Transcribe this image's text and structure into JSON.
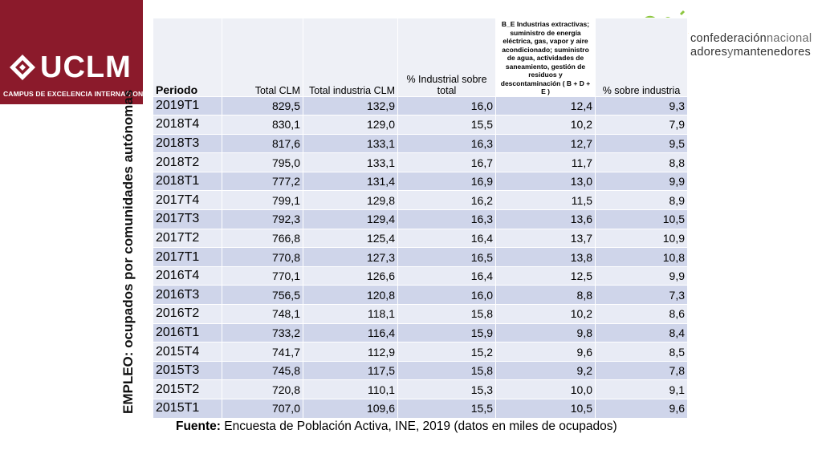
{
  "logo": {
    "text": "UCLM",
    "subtitle": "CAMPUS DE EXCELENCIA INTERNACIONAL",
    "brand_color": "#8b1a2b"
  },
  "vertical_title": "EMPLEO: ocupados por comunidades autónomas",
  "partner_logo": {
    "line1_a": "confederación",
    "line1_b": "nacional",
    "line2_a": "adores",
    "line2_b": "y",
    "line2_c": "mantenedores"
  },
  "table": {
    "headers": {
      "periodo": "Periodo",
      "total_clm": "Total CLM",
      "total_industria": "Total industria CLM",
      "pct_industrial": "% Industrial sobre total",
      "b_e": "B_E Industrias extractivas; suministro de energía eléctrica, gas, vapor y aire acondicionado; suministro de agua, actividades de saneamiento, gestión de residuos y descontaminación ( B + D + E )",
      "pct_sobre_industria": "% sobre industria"
    },
    "rows": [
      [
        "2019T1",
        "829,5",
        "132,9",
        "16,0",
        "12,4",
        "9,3"
      ],
      [
        "2018T4",
        "830,1",
        "129,0",
        "15,5",
        "10,2",
        "7,9"
      ],
      [
        "2018T3",
        "817,6",
        "133,1",
        "16,3",
        "12,7",
        "9,5"
      ],
      [
        "2018T2",
        "795,0",
        "133,1",
        "16,7",
        "11,7",
        "8,8"
      ],
      [
        "2018T1",
        "777,2",
        "131,4",
        "16,9",
        "13,0",
        "9,9"
      ],
      [
        "2017T4",
        "799,1",
        "129,8",
        "16,2",
        "11,5",
        "8,9"
      ],
      [
        "2017T3",
        "792,3",
        "129,4",
        "16,3",
        "13,6",
        "10,5"
      ],
      [
        "2017T2",
        "766,8",
        "125,4",
        "16,4",
        "13,7",
        "10,9"
      ],
      [
        "2017T1",
        "770,8",
        "127,3",
        "16,5",
        "13,8",
        "10,8"
      ],
      [
        "2016T4",
        "770,1",
        "126,6",
        "16,4",
        "12,5",
        "9,9"
      ],
      [
        "2016T3",
        "756,5",
        "120,8",
        "16,0",
        "8,8",
        "7,3"
      ],
      [
        "2016T2",
        "748,1",
        "118,1",
        "15,8",
        "10,2",
        "8,6"
      ],
      [
        "2016T1",
        "733,2",
        "116,4",
        "15,9",
        "9,8",
        "8,4"
      ],
      [
        "2015T4",
        "741,7",
        "112,9",
        "15,2",
        "9,6",
        "8,5"
      ],
      [
        "2015T3",
        "745,8",
        "117,5",
        "15,8",
        "9,2",
        "7,8"
      ],
      [
        "2015T2",
        "720,8",
        "110,1",
        "15,3",
        "10,0",
        "9,1"
      ],
      [
        "2015T1",
        "707,0",
        "109,6",
        "15,5",
        "10,5",
        "9,6"
      ]
    ]
  },
  "source": {
    "label": "Fuente:",
    "text": " Encuesta de Población Activa, INE, 2019 (datos en miles de ocupados)"
  }
}
